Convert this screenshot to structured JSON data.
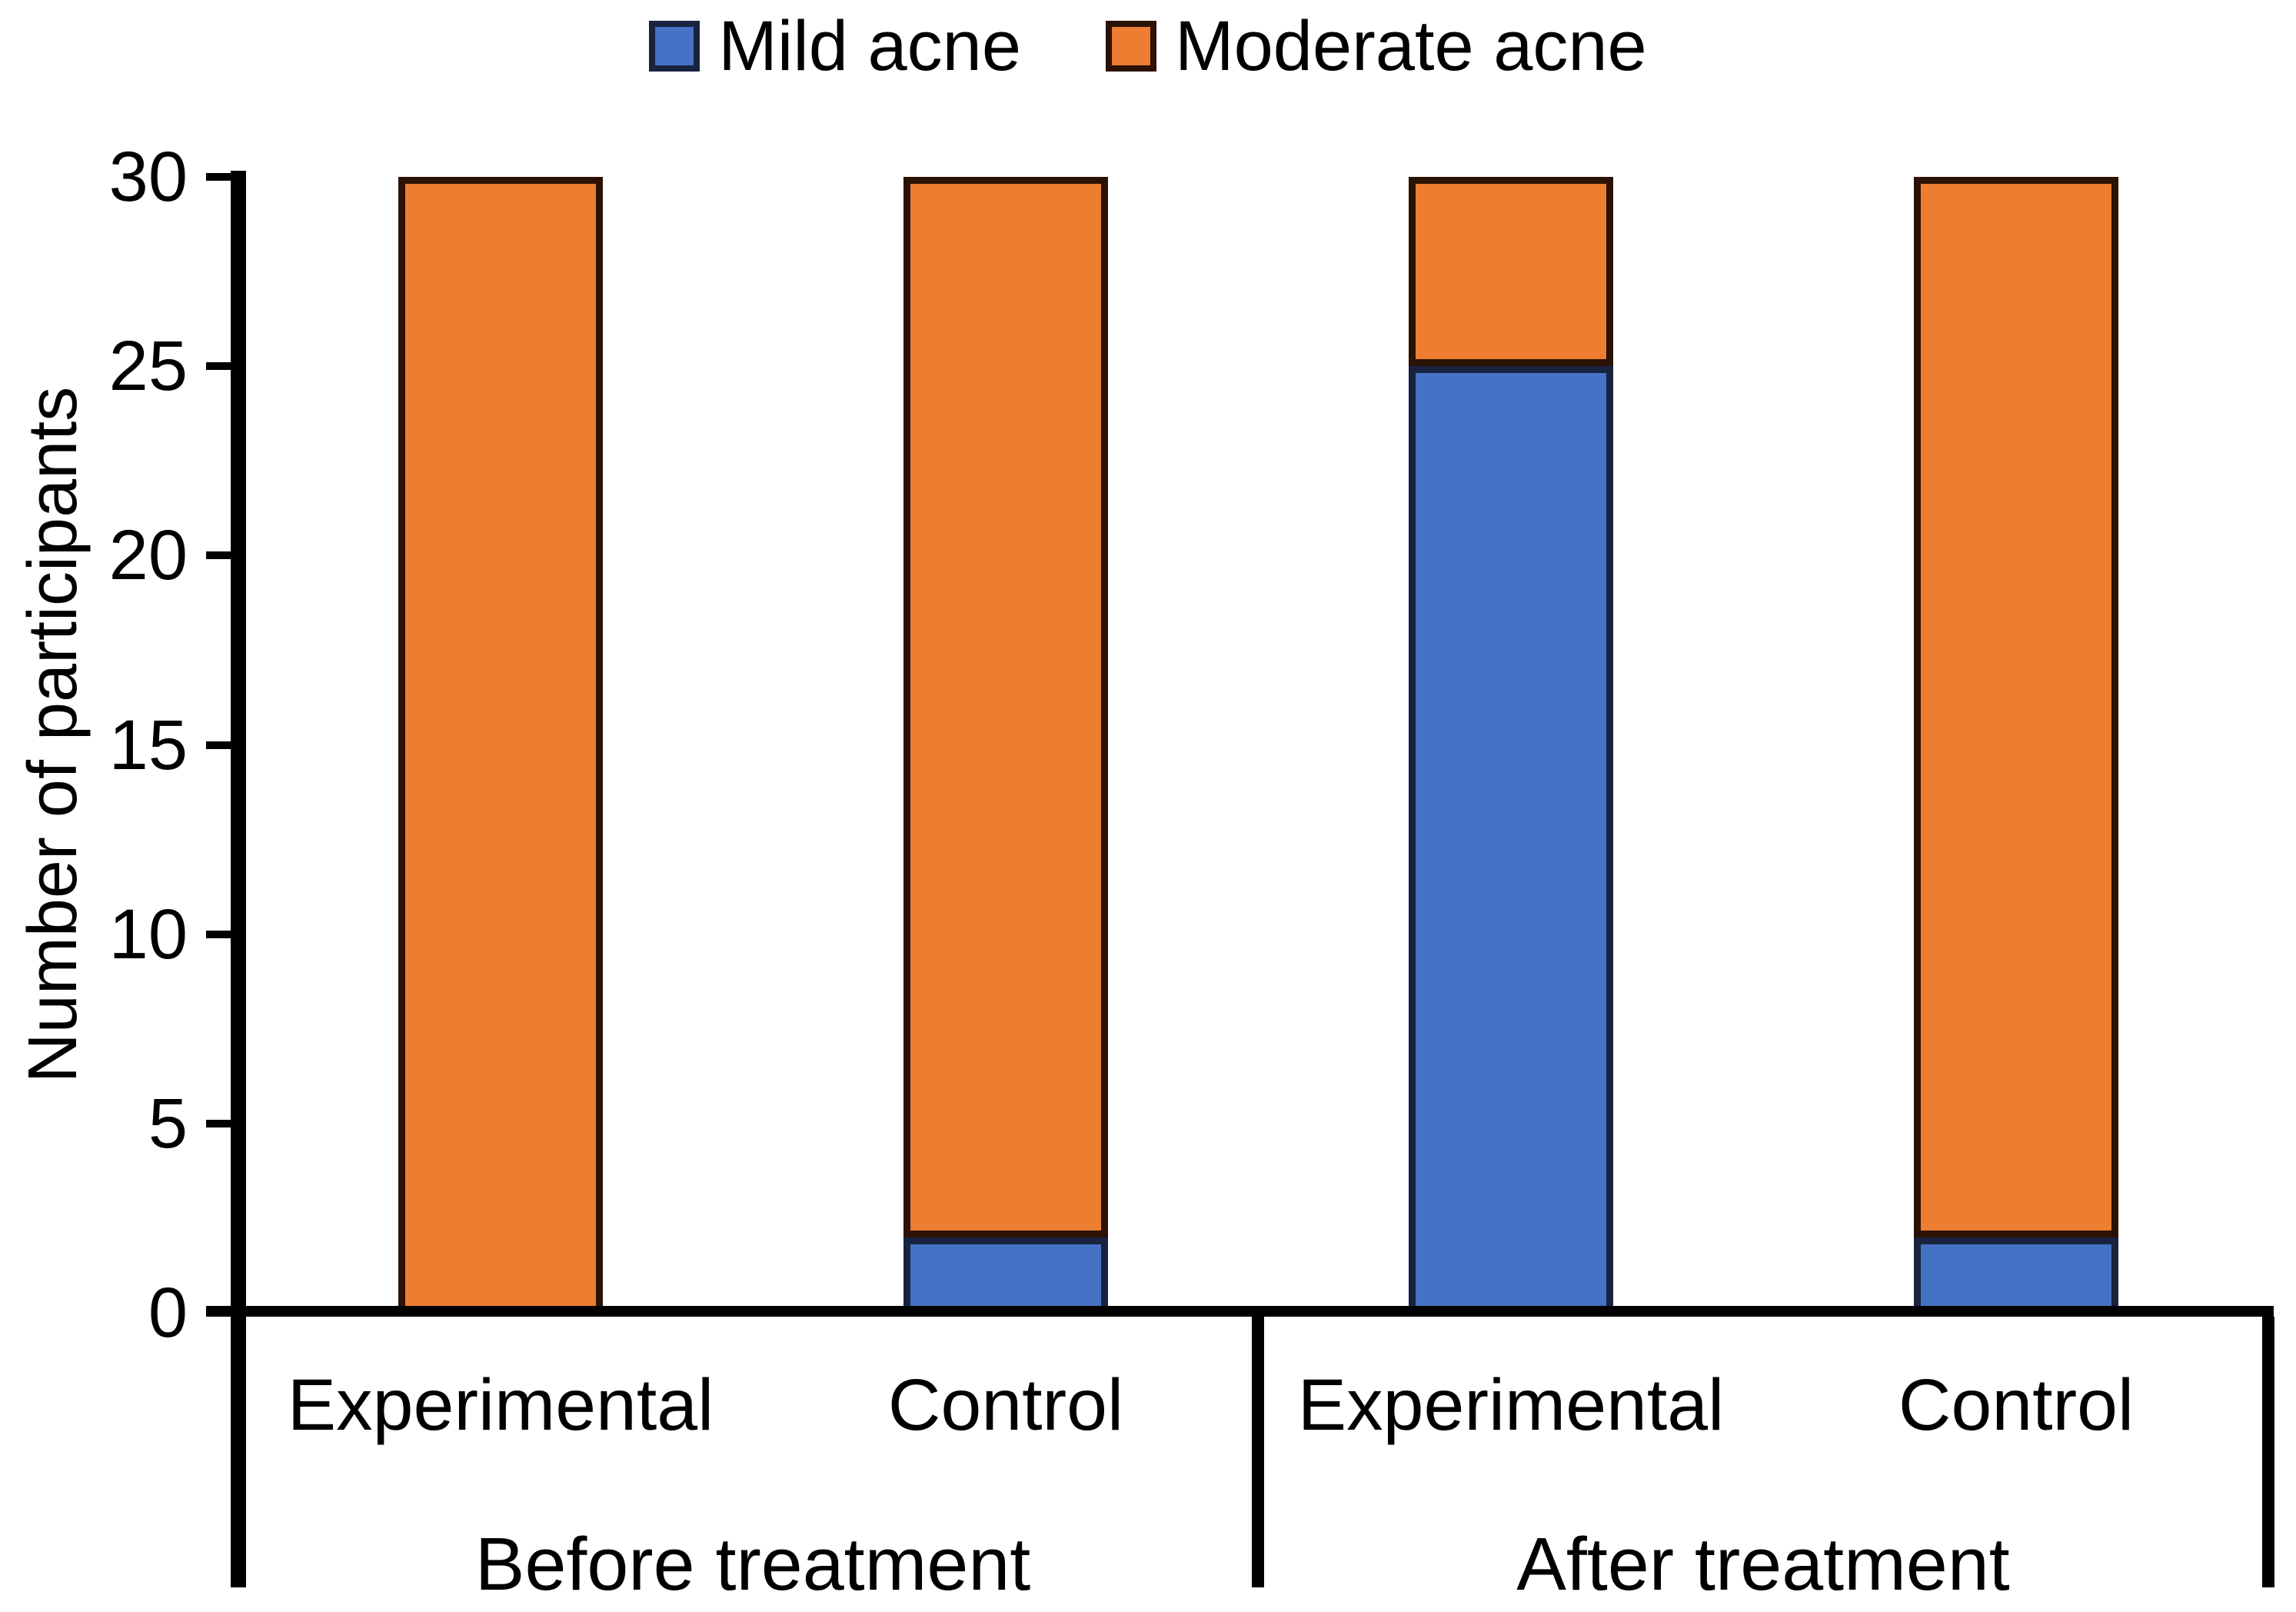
{
  "chart_data": {
    "type": "bar",
    "stacked": true,
    "title": "",
    "ylabel": "Number of participants",
    "xlabel": "",
    "ylim": [
      0,
      30
    ],
    "yticks": [
      0,
      5,
      10,
      15,
      20,
      25,
      30
    ],
    "grid": false,
    "legend_position": "top",
    "axis_color": "#000000",
    "categories": [
      "Experimental",
      "Control",
      "Experimental",
      "Control"
    ],
    "groups": [
      {
        "label": "Before treatment",
        "category_indexes": [
          0,
          1
        ]
      },
      {
        "label": "After treatment",
        "category_indexes": [
          2,
          3
        ]
      }
    ],
    "series": [
      {
        "name": "Mild acne",
        "fill": "#4472C4",
        "border": "#17233F",
        "values": [
          0,
          2,
          25,
          2
        ]
      },
      {
        "name": "Moderate acne",
        "fill": "#ED7D31",
        "border": "#2B1205",
        "values": [
          30,
          28,
          5,
          28
        ]
      }
    ]
  }
}
